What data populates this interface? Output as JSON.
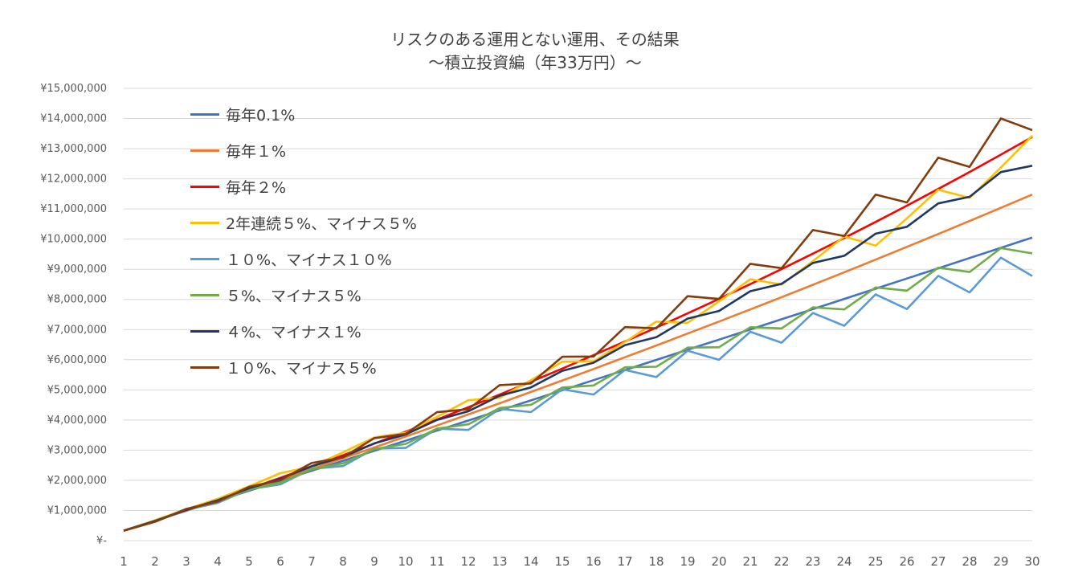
{
  "chart_data": {
    "type": "line",
    "title": "リスクのある運用とない運用、その結果",
    "subtitle": "～積立投資編（年33万円）～",
    "xlabel": "",
    "ylabel": "",
    "x": [
      1,
      2,
      3,
      4,
      5,
      6,
      7,
      8,
      9,
      10,
      11,
      12,
      13,
      14,
      15,
      16,
      17,
      18,
      19,
      20,
      21,
      22,
      23,
      24,
      25,
      26,
      27,
      28,
      29,
      30
    ],
    "ylim": [
      0,
      15000000
    ],
    "y_ticks": [
      0,
      1000000,
      2000000,
      3000000,
      4000000,
      5000000,
      6000000,
      7000000,
      8000000,
      9000000,
      10000000,
      11000000,
      12000000,
      13000000,
      14000000,
      15000000
    ],
    "y_tick_labels": [
      "¥-",
      "¥1,000,000",
      "¥2,000,000",
      "¥3,000,000",
      "¥4,000,000",
      "¥5,000,000",
      "¥6,000,000",
      "¥7,000,000",
      "¥8,000,000",
      "¥9,000,000",
      "¥10,000,000",
      "¥11,000,000",
      "¥12,000,000",
      "¥13,000,000",
      "¥14,000,000",
      "¥15,000,000"
    ],
    "grid": "horizontal",
    "legend_position": "top-left inside",
    "series": [
      {
        "name": "毎年0.1%",
        "color": "#4472c4",
        "values": [
          330000,
          660300,
          990960,
          1321950,
          1653300,
          1985000,
          2317000,
          2649500,
          2982400,
          3315600,
          3649300,
          3983300,
          4317600,
          4652300,
          4987300,
          5322600,
          5658300,
          5994300,
          6330600,
          6667200,
          7004200,
          7341500,
          7679200,
          8017200,
          8355500,
          8694200,
          9033200,
          9372600,
          9712300,
          10052300
        ]
      },
      {
        "name": "毎年１%",
        "color": "#ed7d31",
        "values": [
          330000,
          663300,
          999900,
          1339900,
          1683300,
          2030100,
          2380400,
          2734200,
          3091500,
          3452400,
          3817000,
          4185100,
          4556900,
          4932500,
          5311800,
          5694900,
          6081800,
          6472700,
          6867400,
          7266100,
          7668800,
          8075500,
          8486200,
          8901100,
          9320100,
          9743300,
          10170700,
          10602400,
          11038400,
          11478800
        ]
      },
      {
        "name": "毎年２%",
        "color": "#ff0000",
        "values": [
          330000,
          666600,
          1009900,
          1360100,
          1717300,
          2081600,
          2453200,
          2832300,
          3218900,
          3613200,
          4015500,
          4425800,
          4844300,
          5271200,
          5706600,
          6150700,
          6603700,
          7065800,
          7537100,
          8017800,
          8508200,
          9008300,
          9518500,
          10038800,
          10569600,
          11111000,
          11663200,
          12226400,
          12800900,
          13386900
        ]
      },
      {
        "name": "2年連続５%、マイナス５%",
        "color": "#ffc000",
        "values": [
          330000,
          676500,
          1040300,
          1387300,
          1802200,
          2237800,
          2456200,
          2927200,
          3421700,
          3580200,
          4105200,
          4656500,
          4736800,
          5320100,
          5932600,
          5949200,
          6590000,
          7262800,
          7224800,
          7929400,
          8669200,
          8493600,
          9271200,
          10087700,
          9784400,
          10688200,
          11637200,
          11369600,
          12376700,
          13434100
        ]
      },
      {
        "name": "１０%、マイナス１０%",
        "color": "#5b9bd5",
        "values": [
          330000,
          630000,
          1023000,
          1250700,
          1705800,
          1865200,
          2381700,
          2473600,
          3051000,
          3075900,
          3713500,
          3672100,
          4369300,
          4262400,
          5018600,
          4846800,
          5661500,
          5425300,
          6297800,
          5998000,
          6927800,
          6565000,
          7551500,
          7126300,
          8168900,
          7682000,
          8780200,
          8232200,
          9385400,
          8776900
        ]
      },
      {
        "name": "５%、マイナス５%",
        "color": "#70ad47",
        "values": [
          330000,
          645000,
          1023800,
          1285100,
          1695700,
          1922000,
          2364600,
          2563300,
          3037000,
          3208100,
          3715000,
          3858700,
          4398100,
          4508200,
          5079100,
          5146300,
          5749100,
          5768100,
          6402000,
          6412000,
          7078100,
          7038700,
          7736700,
          7667300,
          8397600,
          8291400,
          9052500,
          8908300,
          9700200,
          9526700
        ]
      },
      {
        "name": "４%、マイナス１%",
        "color": "#1f3864",
        "values": [
          330000,
          653400,
          1023700,
          1340100,
          1736200,
          2045600,
          2470800,
          2772800,
          3226200,
          3520300,
          4004000,
          4290800,
          4805600,
          5084300,
          5631800,
          5902600,
          6483900,
          6746900,
          7363600,
          7617900,
          8271700,
          8517900,
          9210200,
          9447300,
          10180200,
          10408500,
          11184300,
          11403400,
          12223600,
          12433600
        ]
      },
      {
        "name": "１０%、マイナス５%",
        "color": "#843c0c",
        "values": [
          330000,
          627000,
          1052700,
          1293600,
          1786000,
          2010200,
          2574200,
          2759000,
          3398400,
          3542000,
          4259200,
          4359700,
          5158700,
          5214200,
          6098100,
          6107500,
          7081200,
          7041500,
          8108700,
          8016500,
          9181200,
          9036500,
          10303200,
          10102300,
          11475000,
          11215700,
          12700300,
          12396500,
          14000000,
          13613400
        ]
      }
    ]
  }
}
